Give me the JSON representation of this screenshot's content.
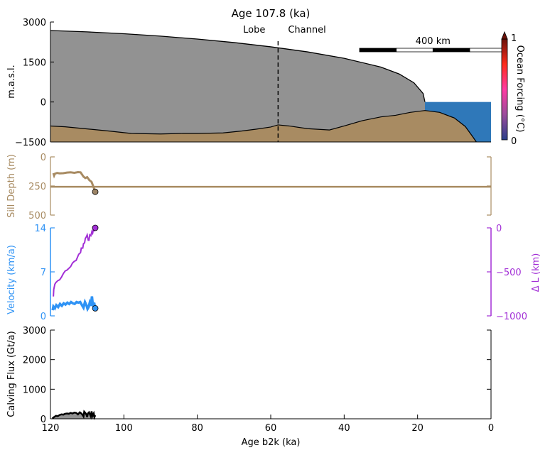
{
  "title": "Age 107.8 (ka)",
  "colors": {
    "ice": "#929292",
    "bed": "#a88b62",
    "ocean": "#2f78b9",
    "sill": "#a88b62",
    "velocity": "#2f93f5",
    "delta_l": "#a22fd6",
    "flux_line": "#000000",
    "flux_fill": "#929292"
  },
  "chart_data": [
    {
      "id": "profile",
      "type": "area",
      "ylabel": "m.a.s.l.",
      "ylim": [
        -1500,
        3000
      ],
      "yticks": [
        "3000",
        "1500",
        "0",
        "−1500"
      ],
      "yticks_values": [
        3000,
        1500,
        0,
        -1500
      ],
      "x_unit": "km along flowline",
      "xlim": [
        0,
        1200
      ],
      "ice_surface": {
        "x": [
          0,
          100,
          200,
          300,
          400,
          500,
          600,
          700,
          800,
          900,
          950,
          990,
          1015,
          1020
        ],
        "y": [
          2680,
          2630,
          2560,
          2470,
          2360,
          2230,
          2070,
          1880,
          1640,
          1310,
          1050,
          720,
          320,
          0
        ]
      },
      "bed": {
        "x": [
          0,
          40,
          100,
          160,
          220,
          300,
          360,
          400,
          470,
          520,
          560,
          600,
          620,
          650,
          700,
          760,
          800,
          850,
          900,
          940,
          980,
          1020,
          1060,
          1100,
          1130,
          1150,
          1160
        ],
        "y": [
          -900,
          -930,
          -1010,
          -1090,
          -1180,
          -1200,
          -1180,
          -1180,
          -1160,
          -1090,
          -1020,
          -940,
          -860,
          -900,
          -1000,
          -1050,
          -900,
          -700,
          -560,
          -500,
          -390,
          -320,
          -390,
          -600,
          -920,
          -1300,
          -1500
        ]
      },
      "ocean": {
        "x_start": 1020,
        "x_end": 1200,
        "surface": 0
      },
      "divider": {
        "x": 620,
        "left_label": "Lobe",
        "right_label": "Channel"
      },
      "scale_bar": {
        "label": "400 km",
        "length": 400
      },
      "colorbar": {
        "label": "Ocean Forcing (°C)",
        "min_label": "0",
        "max_label": "1",
        "range": [
          0,
          1
        ]
      }
    },
    {
      "id": "sill",
      "type": "line",
      "ylabel": "Sill Depth (m)",
      "ylim": [
        0,
        500
      ],
      "y_inverted": true,
      "yticks": [
        "0",
        "250",
        "500"
      ],
      "yticks_values": [
        0,
        250,
        500
      ],
      "xlim": [
        120,
        0
      ],
      "reference_depth": 257,
      "series": [
        {
          "x": [
            119.2,
            119.0,
            118.8,
            118.2,
            117.5,
            116.5,
            115.5,
            114.5,
            113.5,
            112.5,
            111.8,
            111.0,
            110.5,
            110.0,
            109.4,
            108.8,
            108.2,
            107.8
          ],
          "y": [
            140,
            160,
            145,
            138,
            142,
            140,
            135,
            133,
            137,
            131,
            133,
            170,
            182,
            174,
            200,
            215,
            265,
            300
          ]
        }
      ],
      "endpoint": {
        "x": 107.8,
        "y": 300
      }
    },
    {
      "id": "velocity",
      "type": "line",
      "ylabel": "Velocity (km/a)",
      "ylabel_right": "Δ L (km)",
      "ylim": [
        0,
        14
      ],
      "ylim_right": [
        -1000,
        0
      ],
      "yticks": [
        "0",
        "7",
        "14"
      ],
      "yticks_values": [
        0,
        7,
        14
      ],
      "yticks_right": [
        "−1000",
        "−500",
        "0"
      ],
      "yticks_right_values": [
        -1000,
        -500,
        0
      ],
      "xlim": [
        120,
        0
      ],
      "series": [
        {
          "name": "Velocity (km/a)",
          "axis": "left",
          "x": [
            119.4,
            119.2,
            118.8,
            118.4,
            117.9,
            117.4,
            116.9,
            116.4,
            115.9,
            115.4,
            114.9,
            114.4,
            113.9,
            113.4,
            112.9,
            112.4,
            111.9,
            111.4,
            111.0,
            110.6,
            110.2,
            109.9,
            109.6,
            109.3,
            109.0,
            108.7,
            108.4,
            108.1,
            107.8
          ],
          "y": [
            0.9,
            1.5,
            1.2,
            1.7,
            1.4,
            1.9,
            1.6,
            2.0,
            1.8,
            2.1,
            1.9,
            2.2,
            2.0,
            1.9,
            2.2,
            2.1,
            2.2,
            1.7,
            1.3,
            2.2,
            1.7,
            1.1,
            1.4,
            2.1,
            1.6,
            3.1,
            1.5,
            2.1,
            1.2
          ]
        },
        {
          "name": "Δ L (km)",
          "axis": "right",
          "x": [
            119.2,
            119.1,
            118.8,
            118.5,
            118.0,
            117.5,
            117.0,
            116.5,
            116.0,
            115.5,
            115.0,
            114.5,
            114.0,
            113.5,
            113.0,
            112.6,
            112.3,
            112.0,
            111.8,
            111.6,
            111.2,
            111.0,
            110.7,
            110.5,
            110.2,
            110.0,
            109.7,
            109.5,
            109.3,
            109.0,
            108.7,
            108.5,
            108.3,
            108.1,
            107.8
          ],
          "y": [
            -780,
            -700,
            -640,
            -620,
            -600,
            -590,
            -560,
            -520,
            -490,
            -480,
            -460,
            -440,
            -400,
            -380,
            -370,
            -330,
            -300,
            -290,
            -280,
            -230,
            -230,
            -180,
            -170,
            -120,
            -100,
            -80,
            -140,
            -140,
            -80,
            -90,
            -40,
            -60,
            -20,
            -30,
            0
          ]
        }
      ],
      "endpoints": [
        {
          "axis": "left",
          "x": 107.8,
          "y": 1.2
        },
        {
          "axis": "right",
          "x": 107.8,
          "y": 0
        }
      ]
    },
    {
      "id": "flux",
      "type": "area",
      "ylabel": "Calving Flux (Gt/a)",
      "xlabel": "Age b2k (ka)",
      "ylim": [
        0,
        3000
      ],
      "yticks": [
        "0",
        "1000",
        "2000",
        "3000"
      ],
      "yticks_values": [
        0,
        1000,
        2000,
        3000
      ],
      "xlim": [
        120,
        0
      ],
      "xticks": [
        "120",
        "100",
        "80",
        "60",
        "40",
        "20",
        "0"
      ],
      "xticks_values": [
        120,
        100,
        80,
        60,
        40,
        20,
        0
      ],
      "series": [
        {
          "x": [
            119.5,
            119.0,
            118.5,
            118.0,
            117.5,
            117.0,
            116.5,
            116.0,
            115.5,
            115.0,
            114.5,
            114.0,
            113.5,
            113.0,
            112.5,
            112.0,
            111.5,
            111.2,
            111.0,
            110.8,
            110.5,
            110.2,
            110.0,
            109.8,
            109.5,
            109.2,
            109.0,
            108.8,
            108.5,
            108.2,
            108.0,
            107.8
          ],
          "y": [
            10,
            60,
            100,
            90,
            130,
            150,
            140,
            170,
            180,
            170,
            200,
            180,
            210,
            200,
            150,
            220,
            170,
            120,
            80,
            240,
            200,
            140,
            60,
            180,
            220,
            140,
            80,
            250,
            100,
            180,
            60,
            120
          ]
        }
      ]
    }
  ]
}
